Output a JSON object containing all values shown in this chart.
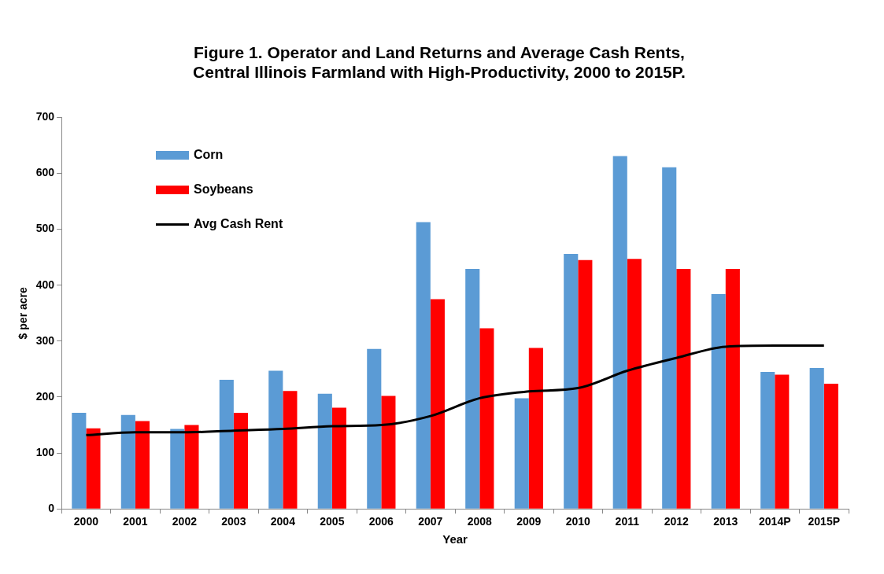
{
  "chart_data": {
    "type": "bar",
    "title": "Figure 1.  Operator and Land Returns and Average Cash Rents, Central Illinois Farmland with High-Productivity, 2000 to 2015P.",
    "xlabel": "Year",
    "ylabel": "$ per acre",
    "categories": [
      "2000",
      "2001",
      "2002",
      "2003",
      "2004",
      "2005",
      "2006",
      "2007",
      "2008",
      "2009",
      "2010",
      "2011",
      "2012",
      "2013",
      "2014P",
      "2015P"
    ],
    "series": [
      {
        "name": "Corn",
        "color": "#5b9bd5",
        "values": [
          172,
          168,
          143,
          231,
          247,
          206,
          286,
          513,
          429,
          198,
          456,
          631,
          611,
          384,
          245,
          252
        ]
      },
      {
        "name": "Soybeans",
        "color": "#ff0000",
        "values": [
          144,
          157,
          150,
          172,
          211,
          181,
          202,
          375,
          323,
          288,
          445,
          447,
          429,
          429,
          240,
          224
        ]
      },
      {
        "name": "Avg Cash Rent",
        "type": "line",
        "color": "#000000",
        "values": [
          132,
          137,
          137,
          140,
          143,
          148,
          150,
          166,
          198,
          210,
          216,
          247,
          270,
          290,
          292,
          292
        ]
      }
    ],
    "ylim": [
      0,
      700
    ],
    "yticks": [
      0,
      100,
      200,
      300,
      400,
      500,
      600,
      700
    ],
    "grid": false,
    "legend": "top left",
    "marker": "none",
    "line_style": "solid"
  }
}
